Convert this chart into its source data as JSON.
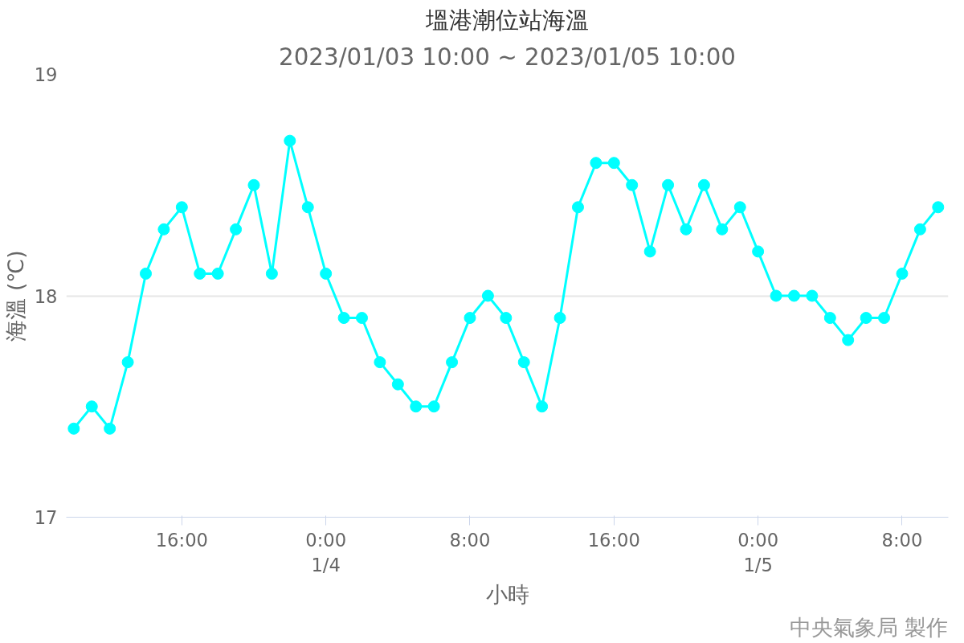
{
  "chart_data": {
    "type": "line",
    "title": "塭港潮位站海溫",
    "subtitle": "2023/01/03 10:00 ~ 2023/01/05 10:00",
    "xlabel": "小時",
    "ylabel": "海溫 (℃)",
    "x": [
      "2023-01-03T10:00",
      "2023-01-03T11:00",
      "2023-01-03T12:00",
      "2023-01-03T13:00",
      "2023-01-03T14:00",
      "2023-01-03T15:00",
      "2023-01-03T16:00",
      "2023-01-03T17:00",
      "2023-01-03T18:00",
      "2023-01-03T19:00",
      "2023-01-03T20:00",
      "2023-01-03T21:00",
      "2023-01-03T22:00",
      "2023-01-03T23:00",
      "2023-01-04T00:00",
      "2023-01-04T01:00",
      "2023-01-04T02:00",
      "2023-01-04T03:00",
      "2023-01-04T04:00",
      "2023-01-04T05:00",
      "2023-01-04T06:00",
      "2023-01-04T07:00",
      "2023-01-04T08:00",
      "2023-01-04T09:00",
      "2023-01-04T10:00",
      "2023-01-04T11:00",
      "2023-01-04T12:00",
      "2023-01-04T13:00",
      "2023-01-04T14:00",
      "2023-01-04T15:00",
      "2023-01-04T16:00",
      "2023-01-04T17:00",
      "2023-01-04T18:00",
      "2023-01-04T19:00",
      "2023-01-04T20:00",
      "2023-01-04T21:00",
      "2023-01-04T22:00",
      "2023-01-04T23:00",
      "2023-01-05T00:00",
      "2023-01-05T01:00",
      "2023-01-05T02:00",
      "2023-01-05T03:00",
      "2023-01-05T04:00",
      "2023-01-05T05:00",
      "2023-01-05T06:00",
      "2023-01-05T07:00",
      "2023-01-05T08:00",
      "2023-01-05T09:00",
      "2023-01-05T10:00"
    ],
    "series": [
      {
        "color": "#00ffff",
        "values": [
          17.4,
          17.5,
          17.4,
          17.7,
          18.1,
          18.3,
          18.4,
          18.1,
          18.1,
          18.3,
          18.5,
          18.1,
          18.7,
          18.4,
          18.1,
          17.9,
          17.9,
          17.7,
          17.6,
          17.5,
          17.5,
          17.7,
          17.9,
          18.0,
          17.9,
          17.7,
          17.5,
          17.9,
          18.4,
          18.6,
          18.6,
          18.5,
          18.2,
          18.5,
          18.3,
          18.5,
          18.3,
          18.4,
          18.2,
          18.0,
          18.0,
          18.0,
          17.9,
          17.8,
          17.9,
          17.9,
          18.1,
          18.3,
          18.4
        ]
      }
    ],
    "xlim": [
      "2023-01-03T09:35",
      "2023-01-05T10:34"
    ],
    "xticks": [
      {
        "value": "2023-01-03T16:00",
        "label": "16:00"
      },
      {
        "value": "2023-01-04T00:00",
        "label": "0:00\n1/4"
      },
      {
        "value": "2023-01-04T08:00",
        "label": "8:00"
      },
      {
        "value": "2023-01-04T16:00",
        "label": "16:00"
      },
      {
        "value": "2023-01-05T00:00",
        "label": "0:00\n1/5"
      },
      {
        "value": "2023-01-05T08:00",
        "label": "8:00"
      }
    ],
    "ylim": [
      17,
      19
    ],
    "yticks": [
      17,
      18,
      19
    ],
    "grid": "y",
    "marker": "circle",
    "line_style": "solid",
    "annotations": [
      "中央氣象局 製作"
    ]
  }
}
